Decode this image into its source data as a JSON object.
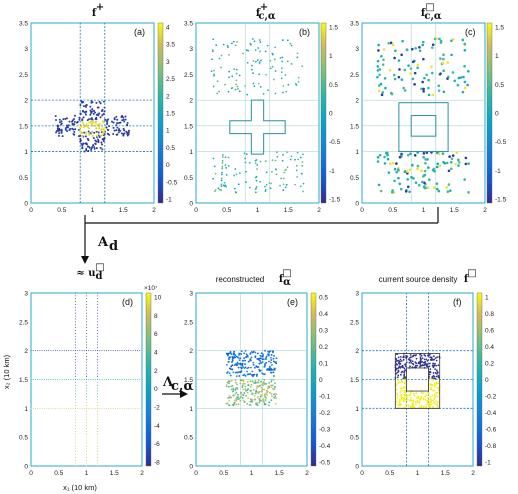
{
  "panels": [
    {
      "id": "a",
      "title": "f⁺",
      "label": "(a)",
      "xticks": [
        "0",
        "0.5",
        "1",
        "1.5",
        "2"
      ],
      "yticks": [
        "0",
        "0.5",
        "1",
        "1.5",
        "2",
        "2.5",
        "3",
        "3.5"
      ],
      "cbticks": [
        "4",
        "3.5",
        "3",
        "2.5",
        "2",
        "1.5",
        "1",
        "0.5",
        "0",
        "-0.5",
        "-1"
      ]
    },
    {
      "id": "b",
      "title": "f⁺ c,α",
      "label": "(b)",
      "xticks": [
        "0",
        "0.5",
        "1",
        "1.5",
        "2"
      ],
      "yticks": [
        "0",
        "0.5",
        "1",
        "1.5",
        "2",
        "2.5",
        "3",
        "3.5"
      ],
      "cbticks": [
        "1.5",
        "1",
        "0.5",
        "0",
        "-0.5",
        "-1",
        "-1.5"
      ]
    },
    {
      "id": "c",
      "title": "f□ c,α",
      "label": "(c)",
      "xticks": [
        "0",
        "0.5",
        "1",
        "1.5",
        "2"
      ],
      "yticks": [
        "0",
        "0.5",
        "1",
        "1.5",
        "2",
        "2.5",
        "3",
        "3.5"
      ],
      "cbticks": [
        "1.5",
        "1",
        "0.5",
        "0",
        "-0.5",
        "-1",
        "-1.5"
      ]
    },
    {
      "id": "d",
      "title": "≈ u□ d",
      "label": "(d)",
      "xticks": [
        "0",
        "0.5",
        "1",
        "1.5",
        "2"
      ],
      "yticks": [
        "0",
        "0.5",
        "1",
        "1.5",
        "2",
        "2.5",
        "3"
      ],
      "cbticks": [
        "10",
        "8",
        "6",
        "4",
        "2",
        "0",
        "-2",
        "-4",
        "-6",
        "-8"
      ],
      "cb_exponent": "×10⁷"
    },
    {
      "id": "e",
      "title": "reconstructed f□ α",
      "label": "(e)",
      "xticks": [
        "0",
        "0.5",
        "1",
        "1.5",
        "2"
      ],
      "yticks": [
        "0",
        "0.5",
        "1",
        "1.5",
        "2",
        "2.5",
        "3"
      ],
      "cbticks": [
        "0.5",
        "0.4",
        "0.3",
        "0.2",
        "0.1",
        "0",
        "-0.1",
        "-0.2",
        "-0.3",
        "-0.4",
        "-0.5"
      ]
    },
    {
      "id": "f",
      "title": "current source density f□",
      "label": "(f)",
      "xticks": [
        "0",
        "0.5",
        "1",
        "1.5",
        "2"
      ],
      "yticks": [
        "0",
        "0.5",
        "1",
        "1.5",
        "2",
        "2.5",
        "3"
      ],
      "cbticks": [
        "1",
        "0.8",
        "0.6",
        "0.4",
        "0.2",
        "0",
        "-0.2",
        "-0.4",
        "-0.6",
        "-0.8",
        "-1"
      ]
    }
  ],
  "operators": {
    "A": "A",
    "A_sub": "d",
    "Lambda": "Λ",
    "Lambda_sub": "c,α"
  },
  "axes": {
    "xlabel": "x₁ (10 km)",
    "ylabel": "x₂ (10 km)"
  },
  "colors": {
    "frame": "#2aa9c9",
    "line": "#1f78b4"
  }
}
